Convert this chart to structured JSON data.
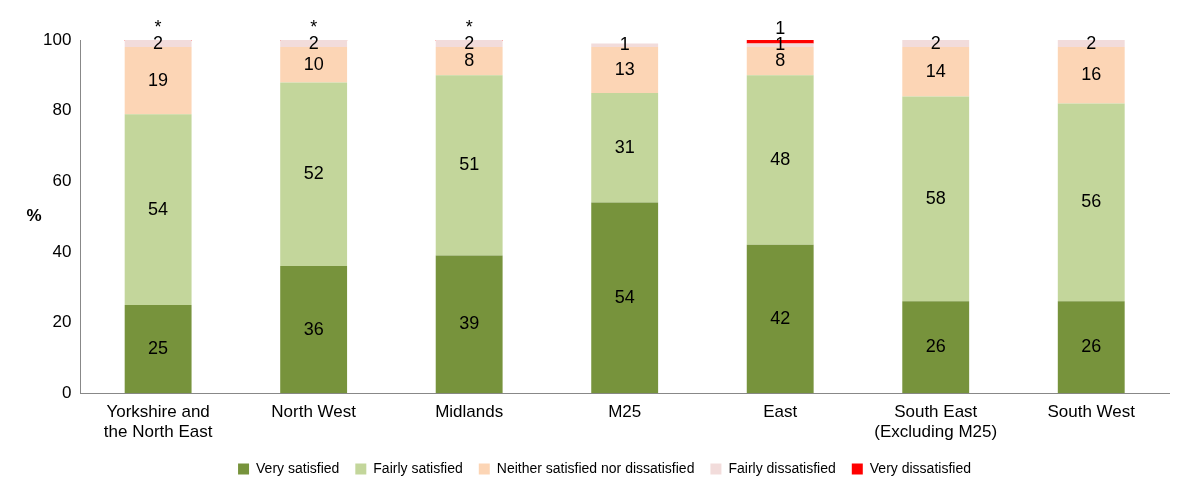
{
  "chart_data": {
    "type": "bar",
    "stacked": true,
    "ylabel": "%",
    "categories": [
      "Yorkshire and the North East",
      "North West",
      "Midlands",
      "M25",
      "East",
      "South East (Excluding M25)",
      "South West"
    ],
    "series": [
      {
        "name": "Very satisfied",
        "color": "#77933c",
        "values": [
          25,
          36,
          39,
          54,
          42,
          26,
          26
        ]
      },
      {
        "name": "Fairly satisfied",
        "color": "#c3d69b",
        "values": [
          54,
          52,
          51,
          31,
          48,
          58,
          56
        ]
      },
      {
        "name": "Neither satisfied nor dissatisfied",
        "color": "#fcd5b5",
        "values": [
          19,
          10,
          8,
          13,
          8,
          14,
          16
        ]
      },
      {
        "name": "Fairly dissatisfied",
        "color": "#f2dcdb",
        "values": [
          2,
          2,
          2,
          1,
          1,
          2,
          2
        ]
      },
      {
        "name": "Very dissatisfied",
        "color": "#ff0000",
        "values": [
          0,
          0,
          0,
          null,
          1,
          null,
          null
        ],
        "value_labels": [
          "*",
          "*",
          "*",
          null,
          "1",
          null,
          null
        ]
      }
    ],
    "ylim": [
      0,
      100
    ],
    "yticks": [
      0,
      20,
      40,
      60,
      80,
      100
    ],
    "grid": false,
    "legend": "bottom",
    "data_labels": true
  }
}
